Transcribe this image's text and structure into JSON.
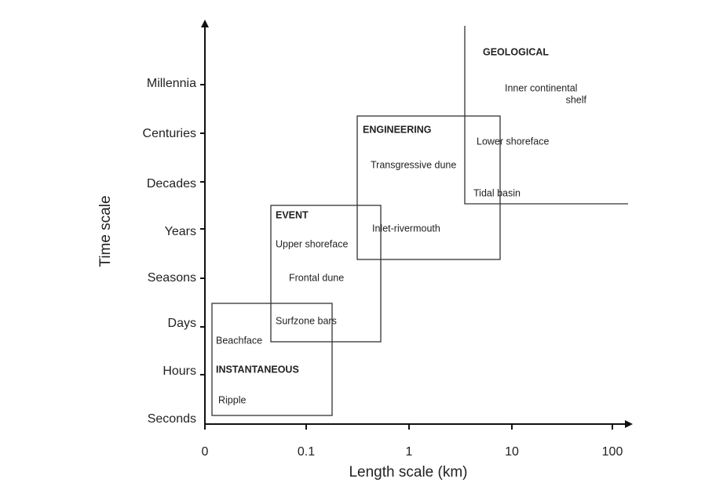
{
  "axes": {
    "y_title": "Time scale",
    "x_title": "Length scale (km)",
    "y_ticks": [
      "Millennia",
      "Centuries",
      "Decades",
      "Years",
      "Seasons",
      "Days",
      "Hours",
      "Seconds"
    ],
    "x_ticks": [
      "0",
      "0.1",
      "1",
      "10",
      "100"
    ]
  },
  "regions": [
    {
      "title": "GEOLOGICAL",
      "labels": [
        "Inner continental",
        "shelf",
        "Lower shoreface",
        "Tidal basin"
      ]
    },
    {
      "title": "ENGINEERING",
      "labels": [
        "Transgressive dune",
        "Inlet-rivermouth"
      ]
    },
    {
      "title": "EVENT",
      "labels": [
        "Upper shoreface",
        "Frontal dune",
        "Surfzone bars"
      ]
    },
    {
      "title": "INSTANTANEOUS",
      "labels": [
        "Beachface",
        "Ripple"
      ]
    }
  ]
}
